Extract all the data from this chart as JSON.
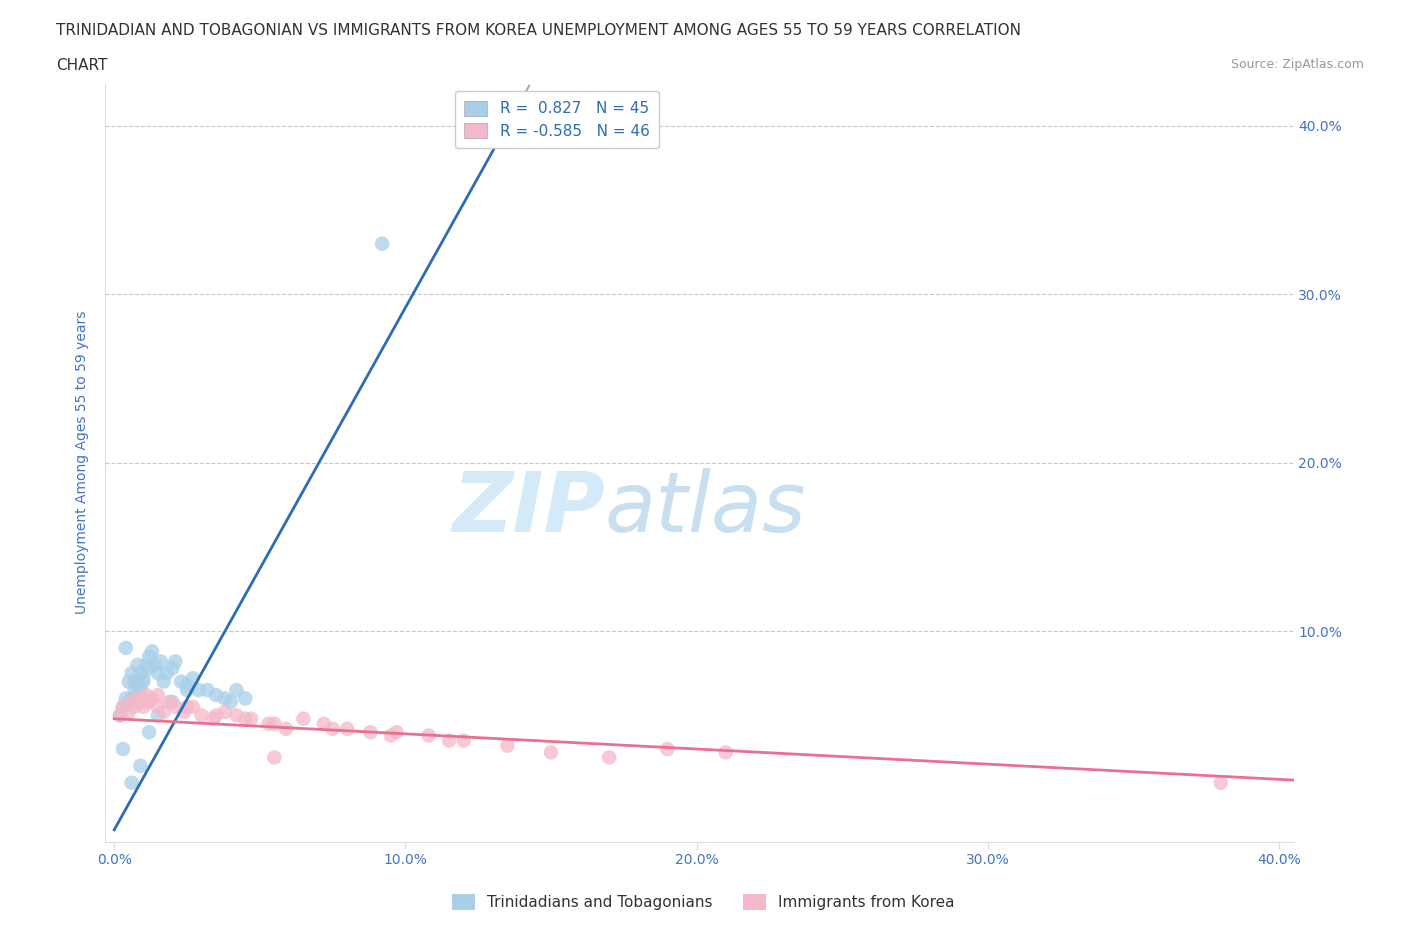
{
  "title_line1": "TRINIDADIAN AND TOBAGONIAN VS IMMIGRANTS FROM KOREA UNEMPLOYMENT AMONG AGES 55 TO 59 YEARS CORRELATION",
  "title_line2": "CHART",
  "source_text": "Source: ZipAtlas.com",
  "ylabel": "Unemployment Among Ages 55 to 59 years",
  "xlim": [
    -0.003,
    0.405
  ],
  "ylim": [
    -0.025,
    0.425
  ],
  "blue_R": 0.827,
  "blue_N": 45,
  "pink_R": -0.585,
  "pink_N": 46,
  "blue_color": "#a8cfe8",
  "pink_color": "#f4b8c8",
  "blue_line_color": "#2a6db5",
  "pink_line_color": "#e87090",
  "legend_label_blue": "Trinidadians and Tobagonians",
  "legend_label_pink": "Immigrants from Korea",
  "watermark_zip": "ZIP",
  "watermark_atlas": "atlas",
  "watermark_color": "#d5eaf8",
  "background_color": "#ffffff",
  "grid_color": "#c8c8c8",
  "title_color": "#333333",
  "axis_label_color": "#4472c4",
  "tick_color": "#4472c4",
  "blue_line_intercept": -0.018,
  "blue_line_slope": 3.1,
  "pink_line_intercept": 0.048,
  "pink_line_slope": -0.09,
  "blue_scatter_x": [
    0.002,
    0.003,
    0.004,
    0.005,
    0.005,
    0.006,
    0.006,
    0.007,
    0.007,
    0.008,
    0.008,
    0.009,
    0.009,
    0.01,
    0.01,
    0.011,
    0.012,
    0.012,
    0.013,
    0.014,
    0.015,
    0.016,
    0.017,
    0.018,
    0.02,
    0.021,
    0.023,
    0.025,
    0.027,
    0.029,
    0.032,
    0.035,
    0.038,
    0.04,
    0.042,
    0.045,
    0.003,
    0.006,
    0.009,
    0.012,
    0.015,
    0.02,
    0.025,
    0.092,
    0.004
  ],
  "blue_scatter_y": [
    0.05,
    0.055,
    0.06,
    0.058,
    0.07,
    0.06,
    0.075,
    0.065,
    0.07,
    0.068,
    0.08,
    0.065,
    0.075,
    0.07,
    0.072,
    0.08,
    0.078,
    0.085,
    0.088,
    0.08,
    0.075,
    0.082,
    0.07,
    0.075,
    0.078,
    0.082,
    0.07,
    0.068,
    0.072,
    0.065,
    0.065,
    0.062,
    0.06,
    0.058,
    0.065,
    0.06,
    0.03,
    0.01,
    0.02,
    0.04,
    0.05,
    0.058,
    0.065,
    0.33,
    0.09
  ],
  "pink_scatter_x": [
    0.002,
    0.003,
    0.005,
    0.006,
    0.007,
    0.008,
    0.009,
    0.01,
    0.011,
    0.012,
    0.013,
    0.015,
    0.017,
    0.019,
    0.021,
    0.024,
    0.027,
    0.03,
    0.034,
    0.038,
    0.042,
    0.047,
    0.053,
    0.059,
    0.065,
    0.072,
    0.08,
    0.088,
    0.097,
    0.108,
    0.12,
    0.135,
    0.15,
    0.17,
    0.19,
    0.21,
    0.015,
    0.025,
    0.035,
    0.045,
    0.055,
    0.075,
    0.095,
    0.115,
    0.38,
    0.055
  ],
  "pink_scatter_y": [
    0.05,
    0.055,
    0.052,
    0.058,
    0.055,
    0.06,
    0.058,
    0.055,
    0.062,
    0.058,
    0.06,
    0.055,
    0.052,
    0.058,
    0.055,
    0.052,
    0.055,
    0.05,
    0.048,
    0.052,
    0.05,
    0.048,
    0.045,
    0.042,
    0.048,
    0.045,
    0.042,
    0.04,
    0.04,
    0.038,
    0.035,
    0.032,
    0.028,
    0.025,
    0.03,
    0.028,
    0.062,
    0.055,
    0.05,
    0.048,
    0.045,
    0.042,
    0.038,
    0.035,
    0.01,
    0.025
  ]
}
